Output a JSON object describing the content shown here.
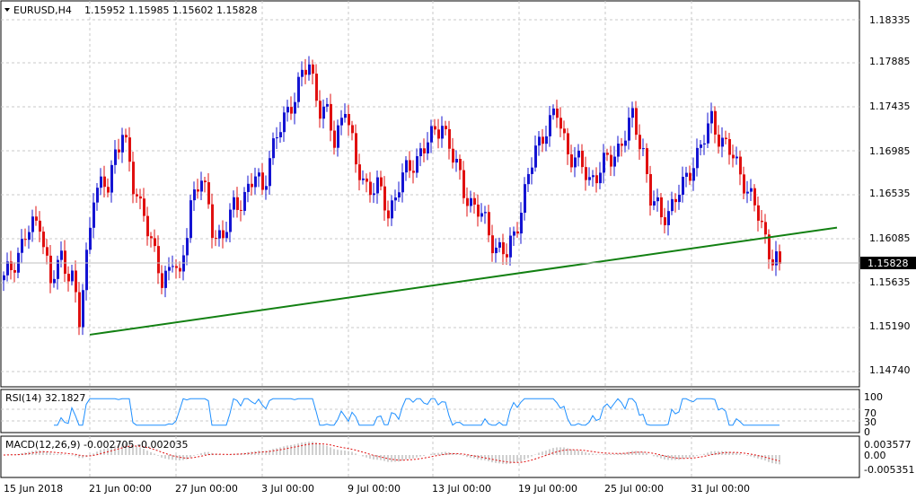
{
  "header": {
    "symbol": "EURUSD,H4",
    "ohlc": "1.15952 1.15985 1.15602 1.15828"
  },
  "current_price": "1.15828",
  "price_axis": [
    "1.18335",
    "1.17885",
    "1.17435",
    "1.16985",
    "1.16535",
    "1.16085",
    "1.15635",
    "1.15190",
    "1.14740"
  ],
  "time_axis": [
    "15 Jun 2018",
    "21 Jun 00:00",
    "27 Jun 00:00",
    "3 Jul 00:00",
    "9 Jul 00:00",
    "13 Jul 00:00",
    "19 Jul 00:00",
    "25 Jul 00:00",
    "31 Jul 00:00"
  ],
  "rsi": {
    "label": "RSI(14) 32.1827",
    "levels": [
      "100",
      "70",
      "30",
      "0"
    ]
  },
  "macd": {
    "label": "MACD(12,26,9) -0.002705 -0.002035",
    "levels": [
      "0.003577",
      "0.00",
      "-0.005351"
    ]
  },
  "colors": {
    "bull": "#1414d2",
    "bear": "#e01010",
    "trendline": "#128012",
    "rsi_line": "#1e8fff",
    "macd_signal": "#e01010"
  },
  "chart_data": {
    "type": "candlestick",
    "symbol": "EURUSD",
    "timeframe": "H4",
    "trendline": {
      "from_price": 1.151,
      "to_price": 1.162
    },
    "waypoints": [
      [
        0,
        1.1565
      ],
      [
        6,
        1.161
      ],
      [
        10,
        1.163
      ],
      [
        13,
        1.156
      ],
      [
        16,
        1.159
      ],
      [
        19,
        1.157
      ],
      [
        21,
        1.152
      ],
      [
        25,
        1.166
      ],
      [
        29,
        1.166
      ],
      [
        31,
        1.17
      ],
      [
        33,
        1.172
      ],
      [
        36,
        1.166
      ],
      [
        39,
        1.164
      ],
      [
        41,
        1.16
      ],
      [
        44,
        1.1565
      ],
      [
        47,
        1.159
      ],
      [
        49,
        1.156
      ],
      [
        52,
        1.165
      ],
      [
        55,
        1.167
      ],
      [
        58,
        1.162
      ],
      [
        61,
        1.161
      ],
      [
        64,
        1.164
      ],
      [
        67,
        1.1655
      ],
      [
        70,
        1.167
      ],
      [
        72,
        1.166
      ],
      [
        74,
        1.1695
      ],
      [
        77,
        1.172
      ],
      [
        80,
        1.175
      ],
      [
        83,
        1.1775
      ],
      [
        85,
        1.1785
      ],
      [
        88,
        1.1745
      ],
      [
        90,
        1.1735
      ],
      [
        92,
        1.1705
      ],
      [
        95,
        1.175
      ],
      [
        98,
        1.168
      ],
      [
        101,
        1.1665
      ],
      [
        104,
        1.166
      ],
      [
        107,
        1.1635
      ],
      [
        110,
        1.1665
      ],
      [
        113,
        1.168
      ],
      [
        116,
        1.17
      ],
      [
        119,
        1.171
      ],
      [
        122,
        1.173
      ],
      [
        125,
        1.169
      ],
      [
        128,
        1.166
      ],
      [
        131,
        1.164
      ],
      [
        134,
        1.1625
      ],
      [
        137,
        1.16
      ],
      [
        140,
        1.159
      ],
      [
        142,
        1.1615
      ],
      [
        145,
        1.1655
      ],
      [
        148,
        1.17
      ],
      [
        151,
        1.1725
      ],
      [
        154,
        1.1735
      ],
      [
        157,
        1.17
      ],
      [
        160,
        1.1685
      ],
      [
        163,
        1.167
      ],
      [
        166,
        1.168
      ],
      [
        169,
        1.169
      ],
      [
        172,
        1.171
      ],
      [
        175,
        1.173
      ],
      [
        178,
        1.17
      ],
      [
        180,
        1.165
      ],
      [
        183,
        1.163
      ],
      [
        186,
        1.1645
      ],
      [
        189,
        1.166
      ],
      [
        192,
        1.169
      ],
      [
        195,
        1.171
      ],
      [
        197,
        1.173
      ],
      [
        200,
        1.171
      ],
      [
        203,
        1.169
      ],
      [
        206,
        1.167
      ],
      [
        209,
        1.164
      ],
      [
        212,
        1.161
      ],
      [
        214,
        1.159
      ],
      [
        216,
        1.1582
      ]
    ]
  }
}
